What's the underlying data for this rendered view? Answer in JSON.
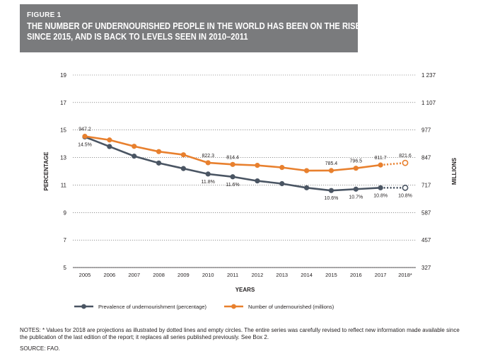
{
  "figure": {
    "label": "FIGURE 1",
    "title_line1": "THE NUMBER OF UNDERNOURISHED PEOPLE IN THE WORLD HAS BEEN ON THE RISE",
    "title_line2": "SINCE 2015, AND IS BACK TO LEVELS SEEN IN 2010–2011"
  },
  "notes": "NOTES: * Values for 2018 are projections as illustrated by dotted lines and empty circles. The entire series was carefully revised to reflect new information made available since the publication of the last edition of the report; it replaces all series published previously. See Box 2.",
  "source": "SOURCE: FAO.",
  "colors": {
    "prevalence": "#4a5563",
    "number": "#e8802e",
    "axis": "#231f20",
    "grid": "#555555",
    "banner": "#7a7b7d"
  },
  "chart_data": {
    "type": "line",
    "xlabel": "YEARS",
    "ylabel_left": "PERCENTAGE",
    "ylabel_right": "MILLIONS",
    "categories": [
      "2005",
      "2006",
      "2007",
      "2008",
      "2009",
      "2010",
      "2011",
      "2012",
      "2013",
      "2014",
      "2015",
      "2016",
      "2017",
      "2018*"
    ],
    "y_left": {
      "min": 5,
      "max": 19,
      "ticks": [
        5,
        7,
        9,
        11,
        13,
        15,
        17,
        19
      ],
      "tick_labels": [
        "5",
        "7",
        "9",
        "11",
        "13",
        "15",
        "17",
        "19"
      ]
    },
    "y_right": {
      "min": 327,
      "max": 1237,
      "ticks": [
        327,
        457,
        587,
        717,
        847,
        977,
        1107,
        1237
      ],
      "tick_labels": [
        "327",
        "457",
        "587",
        "717",
        "847",
        "977",
        "1 107",
        "1 237"
      ]
    },
    "series": [
      {
        "name": "Prevalence of undernourishment (percentage)",
        "axis": "left",
        "values": [
          14.5,
          13.8,
          13.1,
          12.6,
          12.2,
          11.8,
          11.6,
          11.3,
          11.1,
          10.8,
          10.6,
          10.7,
          10.8,
          10.8
        ],
        "projected_from_index": 13,
        "labels": {
          "0": "14.5%",
          "5": "11.8%",
          "6": "11.6%",
          "10": "10.6%",
          "11": "10.7%",
          "12": "10.8%",
          "13": "10.8%"
        }
      },
      {
        "name": "Number of undernourished (millions)",
        "axis": "right",
        "values": [
          947.2,
          930,
          900,
          875,
          860,
          822.3,
          814.4,
          810,
          800,
          785,
          785.4,
          796.5,
          811.7,
          821.6
        ],
        "projected_from_index": 13,
        "labels": {
          "0": "947.2",
          "5": "822.3",
          "6": "814.4",
          "10": "785.4",
          "11": "796.5",
          "12": "811.7",
          "13": "821.6"
        }
      }
    ]
  }
}
